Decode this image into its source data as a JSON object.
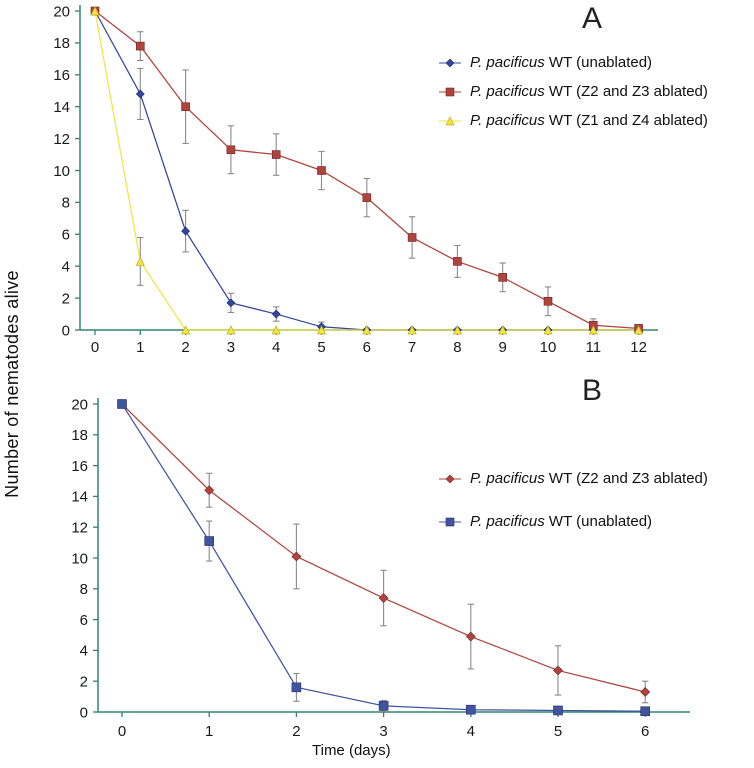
{
  "figure": {
    "ylabel": "Number of nematodes alive",
    "xlabel": "Time (days)",
    "background": "#ffffff",
    "axis_color": "#2e8573",
    "error_bar_color": "#8a8a8a",
    "text_color": "#1a1a1a"
  },
  "chart_data": [
    {
      "type": "line",
      "panel_label": "A",
      "x": [
        0,
        1,
        2,
        3,
        4,
        5,
        6,
        7,
        8,
        9,
        10,
        11,
        12
      ],
      "yticks": [
        0,
        2,
        4,
        6,
        8,
        10,
        12,
        14,
        16,
        18,
        20
      ],
      "ylim": [
        0,
        20
      ],
      "grid": false,
      "legend_position": "inside-right-top",
      "series": [
        {
          "label": "P. pacificus WT (unablated)",
          "label_italic": "P. pacificus",
          "label_rest": " WT (unablated)",
          "color": "#35459b",
          "marker": "diamond",
          "marker_stroke": "#1d2a66",
          "values": [
            20,
            14.8,
            6.2,
            1.7,
            1.0,
            0.2,
            0,
            0,
            0,
            0,
            0,
            0,
            0
          ],
          "errors": [
            0,
            1.6,
            1.3,
            0.6,
            0.45,
            0.3,
            0,
            0,
            0,
            0,
            0,
            0,
            0
          ]
        },
        {
          "label": "P. pacificus WT (Z2 and Z3 ablated)",
          "label_italic": "P. pacificus",
          "label_rest": " WT (Z2 and Z3 ablated)",
          "color": "#b0433d",
          "marker": "square",
          "marker_stroke": "#6e2723",
          "values": [
            20,
            17.8,
            14.0,
            11.3,
            11.0,
            10.0,
            8.3,
            5.8,
            4.3,
            3.3,
            1.8,
            0.3,
            0.1
          ],
          "errors": [
            0,
            0.9,
            2.3,
            1.5,
            1.3,
            1.2,
            1.2,
            1.3,
            1.0,
            0.9,
            0.9,
            0.4,
            0.2
          ]
        },
        {
          "label": "P. pacificus WT (Z1 and Z4 ablated)",
          "label_italic": "P. pacificus",
          "label_rest": " WT (Z1 and Z4 ablated)",
          "color": "#f2e53e",
          "marker": "triangle",
          "marker_stroke": "#c2ab22",
          "values": [
            20,
            4.3,
            0,
            0,
            0,
            0,
            0,
            0,
            0,
            0,
            0,
            0,
            0
          ],
          "errors": [
            0,
            1.5,
            0,
            0,
            0,
            0,
            0,
            0,
            0,
            0,
            0,
            0,
            0
          ]
        }
      ]
    },
    {
      "type": "line",
      "panel_label": "B",
      "x": [
        0,
        1,
        2,
        3,
        4,
        5,
        6
      ],
      "yticks": [
        0,
        2,
        4,
        6,
        8,
        10,
        12,
        14,
        16,
        18,
        20
      ],
      "ylim": [
        0,
        20
      ],
      "grid": false,
      "legend_position": "inside-right-top",
      "series": [
        {
          "label": "P. pacificus WT (Z2 and Z3 ablated)",
          "label_italic": "P. pacificus",
          "label_rest": " WT (Z2 and Z3 ablated)",
          "color": "#b0433d",
          "marker": "diamond",
          "marker_stroke": "#6e2723",
          "values": [
            20,
            14.4,
            10.1,
            7.4,
            4.9,
            2.7,
            1.3
          ],
          "errors": [
            0,
            1.1,
            2.1,
            1.8,
            2.1,
            1.6,
            0.7
          ]
        },
        {
          "label": "P. pacificus WT (unablated)",
          "label_italic": "P. pacificus",
          "label_rest": " WT (unablated)",
          "color": "#41549f",
          "marker": "square",
          "marker_stroke": "#22306b",
          "values": [
            20,
            11.1,
            1.6,
            0.4,
            0.15,
            0.1,
            0.05
          ],
          "errors": [
            0,
            1.3,
            0.9,
            0.35,
            0.15,
            0,
            0
          ]
        }
      ]
    }
  ]
}
